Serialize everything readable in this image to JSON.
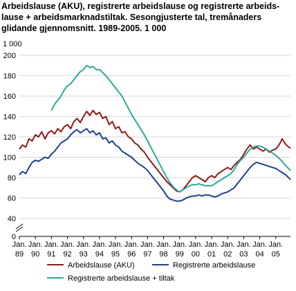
{
  "title": "Arbeidslause (AKU), registrerte arbeidslause og registrerte arbeids-lause + arbeidsmarknadstiltak. Sesongjusterte tal, tremånaders glidande gjennomsnitt. 1989-2005. 1 000",
  "chart_data": {
    "type": "line",
    "title": "Arbeidslause (AKU), registrerte arbeidslause og registrerte arbeids-lause + arbeidsmarknadstiltak. Sesongjusterte tal, tremånaders glidande gjennomsnitt. 1989-2005. 1 000",
    "unit_label": "1 000",
    "ylim": [
      0,
      200
    ],
    "yticks": [
      0,
      40,
      60,
      80,
      100,
      120,
      140,
      160,
      180,
      200
    ],
    "axis_break": true,
    "x_range": [
      1989.0,
      2005.917
    ],
    "x_ticks": [
      {
        "line1": "Jan.",
        "line2": "89"
      },
      {
        "line1": "Jan.",
        "line2": "90"
      },
      {
        "line1": "Jan.",
        "line2": "91"
      },
      {
        "line1": "Jan.",
        "line2": "92"
      },
      {
        "line1": "Jan.",
        "line2": "93"
      },
      {
        "line1": "Jan.",
        "line2": "94"
      },
      {
        "line1": "Jan.",
        "line2": "95"
      },
      {
        "line1": "Jan.",
        "line2": "96"
      },
      {
        "line1": "Jan.",
        "line2": "97"
      },
      {
        "line1": "Jan.",
        "line2": "98"
      },
      {
        "line1": "Jan.",
        "line2": "99"
      },
      {
        "line1": "Jan.",
        "line2": "00"
      },
      {
        "line1": "Jan.",
        "line2": "01"
      },
      {
        "line1": "Jan.",
        "line2": "02"
      },
      {
        "line1": "Jan.",
        "line2": "03"
      },
      {
        "line1": "Jan.",
        "line2": "04"
      },
      {
        "line1": "Jan.",
        "line2": "05"
      }
    ],
    "grid": true,
    "legend_position": "bottom",
    "series": [
      {
        "name": "Arbeidslause (AKU)",
        "color": "#8b1a1a",
        "points": [
          [
            1989.0,
            108
          ],
          [
            1989.2,
            112
          ],
          [
            1989.4,
            110
          ],
          [
            1989.6,
            118
          ],
          [
            1989.8,
            116
          ],
          [
            1990.0,
            122
          ],
          [
            1990.2,
            120
          ],
          [
            1990.4,
            125
          ],
          [
            1990.6,
            118
          ],
          [
            1990.8,
            124
          ],
          [
            1991.0,
            126
          ],
          [
            1991.2,
            123
          ],
          [
            1991.4,
            128
          ],
          [
            1991.6,
            125
          ],
          [
            1991.8,
            130
          ],
          [
            1992.0,
            132
          ],
          [
            1992.2,
            128
          ],
          [
            1992.4,
            135
          ],
          [
            1992.6,
            138
          ],
          [
            1992.8,
            134
          ],
          [
            1993.0,
            140
          ],
          [
            1993.2,
            145
          ],
          [
            1993.4,
            141
          ],
          [
            1993.6,
            146
          ],
          [
            1993.8,
            142
          ],
          [
            1994.0,
            144
          ],
          [
            1994.2,
            138
          ],
          [
            1994.4,
            140
          ],
          [
            1994.6,
            132
          ],
          [
            1994.8,
            135
          ],
          [
            1995.0,
            128
          ],
          [
            1995.2,
            130
          ],
          [
            1995.4,
            124
          ],
          [
            1995.6,
            125
          ],
          [
            1995.8,
            120
          ],
          [
            1996.0,
            118
          ],
          [
            1996.2,
            114
          ],
          [
            1996.4,
            112
          ],
          [
            1996.6,
            108
          ],
          [
            1996.8,
            105
          ],
          [
            1997.0,
            100
          ],
          [
            1997.2,
            96
          ],
          [
            1997.4,
            92
          ],
          [
            1997.6,
            88
          ],
          [
            1997.8,
            84
          ],
          [
            1998.0,
            80
          ],
          [
            1998.2,
            76
          ],
          [
            1998.4,
            73
          ],
          [
            1998.6,
            70
          ],
          [
            1998.8,
            67
          ],
          [
            1999.0,
            66
          ],
          [
            1999.2,
            68
          ],
          [
            1999.4,
            72
          ],
          [
            1999.6,
            76
          ],
          [
            1999.8,
            80
          ],
          [
            2000.0,
            82
          ],
          [
            2000.2,
            80
          ],
          [
            2000.4,
            78
          ],
          [
            2000.6,
            76
          ],
          [
            2000.8,
            80
          ],
          [
            2001.0,
            82
          ],
          [
            2001.2,
            80
          ],
          [
            2001.4,
            84
          ],
          [
            2001.6,
            86
          ],
          [
            2001.8,
            88
          ],
          [
            2002.0,
            90
          ],
          [
            2002.2,
            88
          ],
          [
            2002.4,
            92
          ],
          [
            2002.6,
            95
          ],
          [
            2002.8,
            98
          ],
          [
            2003.0,
            103
          ],
          [
            2003.2,
            108
          ],
          [
            2003.4,
            112
          ],
          [
            2003.6,
            108
          ],
          [
            2003.8,
            110
          ],
          [
            2004.0,
            108
          ],
          [
            2004.2,
            106
          ],
          [
            2004.4,
            108
          ],
          [
            2004.6,
            105
          ],
          [
            2004.8,
            107
          ],
          [
            2005.0,
            108
          ],
          [
            2005.2,
            112
          ],
          [
            2005.4,
            118
          ],
          [
            2005.6,
            113
          ],
          [
            2005.8,
            110
          ],
          [
            2005.917,
            109
          ]
        ]
      },
      {
        "name": "Registrerte arbeidslause",
        "color": "#1f3f8f",
        "points": [
          [
            1989.0,
            83
          ],
          [
            1989.2,
            86
          ],
          [
            1989.4,
            84
          ],
          [
            1989.6,
            90
          ],
          [
            1989.8,
            95
          ],
          [
            1990.0,
            97
          ],
          [
            1990.2,
            96
          ],
          [
            1990.4,
            98
          ],
          [
            1990.6,
            100
          ],
          [
            1990.8,
            99
          ],
          [
            1991.0,
            103
          ],
          [
            1991.2,
            106
          ],
          [
            1991.4,
            110
          ],
          [
            1991.6,
            114
          ],
          [
            1991.8,
            116
          ],
          [
            1992.0,
            118
          ],
          [
            1992.2,
            122
          ],
          [
            1992.4,
            125
          ],
          [
            1992.6,
            127
          ],
          [
            1992.8,
            124
          ],
          [
            1993.0,
            126
          ],
          [
            1993.2,
            128
          ],
          [
            1993.4,
            124
          ],
          [
            1993.6,
            126
          ],
          [
            1993.8,
            122
          ],
          [
            1994.0,
            124
          ],
          [
            1994.2,
            118
          ],
          [
            1994.4,
            119
          ],
          [
            1994.6,
            114
          ],
          [
            1994.8,
            116
          ],
          [
            1995.0,
            112
          ],
          [
            1995.2,
            110
          ],
          [
            1995.4,
            106
          ],
          [
            1995.6,
            104
          ],
          [
            1995.8,
            102
          ],
          [
            1996.0,
            100
          ],
          [
            1996.2,
            97
          ],
          [
            1996.4,
            94
          ],
          [
            1996.6,
            92
          ],
          [
            1996.8,
            90
          ],
          [
            1997.0,
            87
          ],
          [
            1997.2,
            83
          ],
          [
            1997.4,
            79
          ],
          [
            1997.6,
            75
          ],
          [
            1997.8,
            71
          ],
          [
            1998.0,
            67
          ],
          [
            1998.2,
            62
          ],
          [
            1998.4,
            59
          ],
          [
            1998.6,
            58
          ],
          [
            1998.8,
            57
          ],
          [
            1999.0,
            57
          ],
          [
            1999.2,
            58
          ],
          [
            1999.4,
            60
          ],
          [
            1999.6,
            61
          ],
          [
            1999.8,
            62
          ],
          [
            2000.0,
            62
          ],
          [
            2000.2,
            63
          ],
          [
            2000.4,
            62
          ],
          [
            2000.6,
            63
          ],
          [
            2000.8,
            63
          ],
          [
            2001.0,
            62
          ],
          [
            2001.2,
            61
          ],
          [
            2001.4,
            62
          ],
          [
            2001.6,
            64
          ],
          [
            2001.8,
            65
          ],
          [
            2002.0,
            66
          ],
          [
            2002.2,
            68
          ],
          [
            2002.4,
            70
          ],
          [
            2002.6,
            74
          ],
          [
            2002.8,
            78
          ],
          [
            2003.0,
            82
          ],
          [
            2003.2,
            86
          ],
          [
            2003.4,
            90
          ],
          [
            2003.6,
            93
          ],
          [
            2003.8,
            95
          ],
          [
            2004.0,
            94
          ],
          [
            2004.2,
            93
          ],
          [
            2004.4,
            92
          ],
          [
            2004.6,
            91
          ],
          [
            2004.8,
            90
          ],
          [
            2005.0,
            89
          ],
          [
            2005.2,
            87
          ],
          [
            2005.4,
            85
          ],
          [
            2005.6,
            83
          ],
          [
            2005.8,
            80
          ],
          [
            2005.917,
            78
          ]
        ]
      },
      {
        "name": "Registrerte arbeidslause + tiltak",
        "color": "#2ba89a",
        "points": [
          [
            1991.0,
            146
          ],
          [
            1991.2,
            152
          ],
          [
            1991.4,
            156
          ],
          [
            1991.6,
            160
          ],
          [
            1991.8,
            166
          ],
          [
            1992.0,
            170
          ],
          [
            1992.2,
            172
          ],
          [
            1992.4,
            176
          ],
          [
            1992.6,
            180
          ],
          [
            1992.8,
            184
          ],
          [
            1993.0,
            186
          ],
          [
            1993.2,
            190
          ],
          [
            1993.4,
            188
          ],
          [
            1993.6,
            189
          ],
          [
            1993.8,
            186
          ],
          [
            1994.0,
            186
          ],
          [
            1994.2,
            183
          ],
          [
            1994.4,
            180
          ],
          [
            1994.6,
            176
          ],
          [
            1994.8,
            172
          ],
          [
            1995.0,
            168
          ],
          [
            1995.2,
            164
          ],
          [
            1995.4,
            160
          ],
          [
            1995.6,
            154
          ],
          [
            1995.8,
            148
          ],
          [
            1996.0,
            142
          ],
          [
            1996.2,
            137
          ],
          [
            1996.4,
            132
          ],
          [
            1996.6,
            127
          ],
          [
            1996.8,
            122
          ],
          [
            1997.0,
            116
          ],
          [
            1997.2,
            110
          ],
          [
            1997.4,
            104
          ],
          [
            1997.6,
            98
          ],
          [
            1997.8,
            92
          ],
          [
            1998.0,
            86
          ],
          [
            1998.2,
            80
          ],
          [
            1998.4,
            75
          ],
          [
            1998.6,
            71
          ],
          [
            1998.8,
            68
          ],
          [
            1999.0,
            66
          ],
          [
            1999.2,
            68
          ],
          [
            1999.4,
            70
          ],
          [
            1999.6,
            72
          ],
          [
            1999.8,
            73
          ],
          [
            2000.0,
            73
          ],
          [
            2000.2,
            74
          ],
          [
            2000.4,
            73
          ],
          [
            2000.6,
            72
          ],
          [
            2000.8,
            72
          ],
          [
            2001.0,
            72
          ],
          [
            2001.2,
            74
          ],
          [
            2001.4,
            76
          ],
          [
            2001.6,
            78
          ],
          [
            2001.8,
            80
          ],
          [
            2002.0,
            82
          ],
          [
            2002.2,
            84
          ],
          [
            2002.4,
            88
          ],
          [
            2002.6,
            93
          ],
          [
            2002.8,
            97
          ],
          [
            2003.0,
            100
          ],
          [
            2003.2,
            104
          ],
          [
            2003.4,
            108
          ],
          [
            2003.6,
            110
          ],
          [
            2003.8,
            111
          ],
          [
            2004.0,
            111
          ],
          [
            2004.2,
            110
          ],
          [
            2004.4,
            108
          ],
          [
            2004.6,
            106
          ],
          [
            2004.8,
            104
          ],
          [
            2005.0,
            102
          ],
          [
            2005.2,
            99
          ],
          [
            2005.4,
            96
          ],
          [
            2005.6,
            92
          ],
          [
            2005.8,
            89
          ],
          [
            2005.917,
            87
          ]
        ]
      }
    ]
  }
}
